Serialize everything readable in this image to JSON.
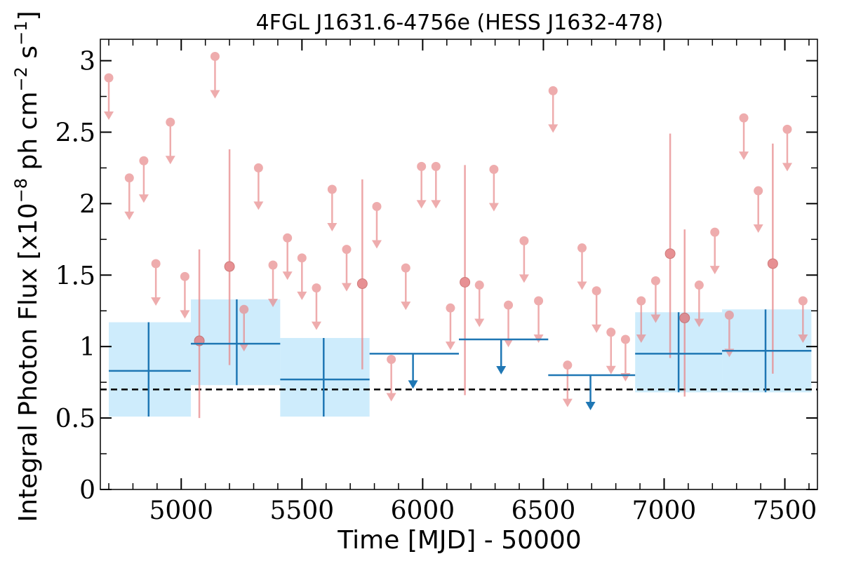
{
  "chart_data": {
    "type": "scatter",
    "title": "4FGL J1631.6-4756e (HESS J1632-478)",
    "xlabel": "Time [MJD] - 50000",
    "ylabel_prefix": "Integral Photon Flux [x10",
    "ylabel_exp1": "−8",
    "ylabel_mid": " ph cm",
    "ylabel_exp2": "−2",
    "ylabel_s": " s",
    "ylabel_exp3": "−1",
    "ylabel_suffix": "]",
    "xlim": [
      4665,
      7635
    ],
    "ylim": [
      0,
      3.15
    ],
    "xticks": [
      {
        "v": 5000,
        "label": "5000"
      },
      {
        "v": 5500,
        "label": "5500"
      },
      {
        "v": 6000,
        "label": "6000"
      },
      {
        "v": 6500,
        "label": "6500"
      },
      {
        "v": 7000,
        "label": "7000"
      },
      {
        "v": 7500,
        "label": "7500"
      }
    ],
    "yticks": [
      {
        "v": 0,
        "label": "0"
      },
      {
        "v": 0.5,
        "label": "0.5"
      },
      {
        "v": 1,
        "label": "1"
      },
      {
        "v": 1.5,
        "label": "1.5"
      },
      {
        "v": 2,
        "label": "2"
      },
      {
        "v": 2.5,
        "label": "2.5"
      },
      {
        "v": 3,
        "label": "3"
      }
    ],
    "x_minor_step": 100,
    "y_minor_step": 0.25,
    "reference_line": {
      "y": 0.7,
      "style": "dashed",
      "color": "#000000"
    },
    "colors": {
      "fine": "#e8898b",
      "coarse": "#1f77b4",
      "band": "#aee0fa"
    },
    "fine_upper_limits": [
      {
        "x": 4700,
        "y": 2.88
      },
      {
        "x": 4785,
        "y": 2.18
      },
      {
        "x": 4845,
        "y": 2.3
      },
      {
        "x": 4895,
        "y": 1.58
      },
      {
        "x": 4955,
        "y": 2.57
      },
      {
        "x": 5015,
        "y": 1.49
      },
      {
        "x": 5140,
        "y": 3.03
      },
      {
        "x": 5260,
        "y": 1.26
      },
      {
        "x": 5320,
        "y": 2.25
      },
      {
        "x": 5380,
        "y": 1.57
      },
      {
        "x": 5440,
        "y": 1.76
      },
      {
        "x": 5500,
        "y": 1.62
      },
      {
        "x": 5560,
        "y": 1.41
      },
      {
        "x": 5625,
        "y": 2.1
      },
      {
        "x": 5685,
        "y": 1.68
      },
      {
        "x": 5810,
        "y": 1.98
      },
      {
        "x": 5870,
        "y": 0.91
      },
      {
        "x": 5930,
        "y": 1.55
      },
      {
        "x": 5995,
        "y": 2.26
      },
      {
        "x": 6055,
        "y": 2.26
      },
      {
        "x": 6115,
        "y": 1.27
      },
      {
        "x": 6235,
        "y": 1.43
      },
      {
        "x": 6295,
        "y": 2.24
      },
      {
        "x": 6355,
        "y": 1.29
      },
      {
        "x": 6420,
        "y": 1.74
      },
      {
        "x": 6480,
        "y": 1.32
      },
      {
        "x": 6540,
        "y": 2.79
      },
      {
        "x": 6600,
        "y": 0.87
      },
      {
        "x": 6660,
        "y": 1.69
      },
      {
        "x": 6720,
        "y": 1.39
      },
      {
        "x": 6780,
        "y": 1.1
      },
      {
        "x": 6840,
        "y": 1.05
      },
      {
        "x": 6905,
        "y": 1.32
      },
      {
        "x": 6965,
        "y": 1.46
      },
      {
        "x": 7145,
        "y": 1.43
      },
      {
        "x": 7210,
        "y": 1.8
      },
      {
        "x": 7270,
        "y": 1.22
      },
      {
        "x": 7330,
        "y": 2.6
      },
      {
        "x": 7390,
        "y": 2.09
      },
      {
        "x": 7510,
        "y": 2.52
      },
      {
        "x": 7575,
        "y": 1.32
      }
    ],
    "fine_detections": [
      {
        "x": 5075,
        "y": 1.04,
        "lo": 0.5,
        "hi": 1.68
      },
      {
        "x": 5200,
        "y": 1.56,
        "lo": 0.87,
        "hi": 2.38
      },
      {
        "x": 5750,
        "y": 1.44,
        "lo": 0.84,
        "hi": 2.17
      },
      {
        "x": 6175,
        "y": 1.45,
        "lo": 0.66,
        "hi": 2.27
      },
      {
        "x": 7025,
        "y": 1.65,
        "lo": 0.92,
        "hi": 2.49
      },
      {
        "x": 7085,
        "y": 1.2,
        "lo": 0.65,
        "hi": 1.82
      },
      {
        "x": 7450,
        "y": 1.58,
        "lo": 0.81,
        "hi": 2.42
      }
    ],
    "coarse_detections": [
      {
        "x": 4865,
        "xlo": 4700,
        "xhi": 5040,
        "y": 0.83,
        "lo": 0.51,
        "hi": 1.17
      },
      {
        "x": 5230,
        "xlo": 5040,
        "xhi": 5410,
        "y": 1.02,
        "lo": 0.73,
        "hi": 1.33
      },
      {
        "x": 5590,
        "xlo": 5410,
        "xhi": 5780,
        "y": 0.77,
        "lo": 0.51,
        "hi": 1.06
      },
      {
        "x": 7060,
        "xlo": 6880,
        "xhi": 7240,
        "y": 0.95,
        "lo": 0.68,
        "hi": 1.24
      },
      {
        "x": 7420,
        "xlo": 7240,
        "xhi": 7610,
        "y": 0.97,
        "lo": 0.68,
        "hi": 1.26
      }
    ],
    "coarse_upper_limits": [
      {
        "x": 5960,
        "xlo": 5780,
        "xhi": 6150,
        "y": 0.95
      },
      {
        "x": 6325,
        "xlo": 6150,
        "xhi": 6520,
        "y": 1.05
      },
      {
        "x": 6695,
        "xlo": 6520,
        "xhi": 6880,
        "y": 0.8
      }
    ]
  }
}
